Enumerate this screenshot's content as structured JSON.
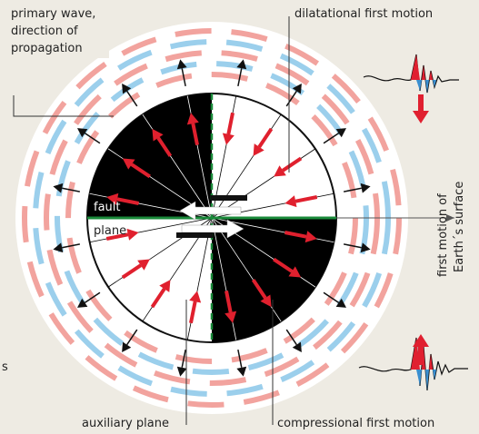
{
  "labels": {
    "primary_wave": [
      "primary wave,",
      "direction of",
      "propagation"
    ],
    "dilatational": "dilatational first motion",
    "fault": "fault",
    "plane": "plane",
    "surface": [
      "first motion of",
      "Earth´s surface"
    ],
    "auxiliary": "auxiliary plane",
    "compressional": "compressional first motion",
    "edge": "s"
  }
}
